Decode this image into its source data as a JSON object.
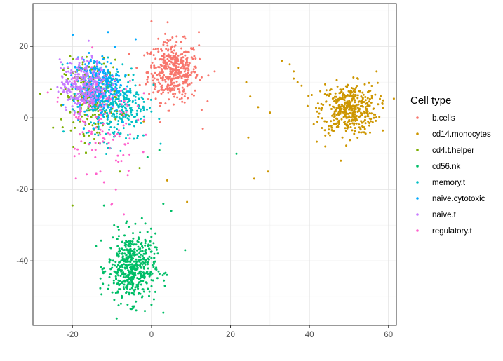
{
  "chart_data": {
    "type": "scatter",
    "title": "",
    "xlabel": "",
    "ylabel": "",
    "xlim": [
      -30,
      62
    ],
    "ylim": [
      -58,
      32
    ],
    "x_ticks": [
      -20,
      0,
      20,
      40,
      60
    ],
    "y_ticks": [
      -40,
      -20,
      0,
      20
    ],
    "x_tick_labels": [
      "-20",
      "0",
      "20",
      "40",
      "60"
    ],
    "y_tick_labels": [
      "-40",
      "-20",
      "0",
      "20"
    ],
    "grid": true,
    "legend_position": "right",
    "legend_title": "Cell type",
    "series": [
      {
        "name": "b.cells",
        "color": "#F8766D"
      },
      {
        "name": "cd14.monocytes",
        "color": "#CD9600"
      },
      {
        "name": "cd4.t.helper",
        "color": "#7CAE00"
      },
      {
        "name": "cd56.nk",
        "color": "#00BE67"
      },
      {
        "name": "memory.t",
        "color": "#00BFC4"
      },
      {
        "name": "naive.cytotoxic",
        "color": "#00A9FF"
      },
      {
        "name": "naive.t",
        "color": "#C77CFF"
      },
      {
        "name": "regulatory.t",
        "color": "#FF61CC"
      }
    ],
    "clusters": [
      {
        "series": "b.cells",
        "center": [
          5.5,
          13
        ],
        "spread": [
          3.2,
          4.2
        ],
        "n": 420
      },
      {
        "series": "cd14.monocytes",
        "center": [
          50,
          2.5
        ],
        "spread": [
          3.6,
          3.6
        ],
        "n": 430
      },
      {
        "series": "cd4.t.helper",
        "center": [
          -15,
          6
        ],
        "spread": [
          3.5,
          5
        ],
        "n": 260
      },
      {
        "series": "cd56.nk",
        "center": [
          -5,
          -42
        ],
        "spread": [
          3,
          4.8
        ],
        "n": 500
      },
      {
        "series": "memory.t",
        "center": [
          -9,
          4
        ],
        "spread": [
          4,
          5.2
        ],
        "n": 330
      },
      {
        "series": "naive.cytotoxic",
        "center": [
          -14,
          9
        ],
        "spread": [
          3,
          4
        ],
        "n": 280
      },
      {
        "series": "naive.t",
        "center": [
          -17,
          9
        ],
        "spread": [
          3,
          3.5
        ],
        "n": 300
      },
      {
        "series": "regulatory.t",
        "center": [
          -13,
          0
        ],
        "spread": [
          4.5,
          8
        ],
        "n": 120
      }
    ],
    "outliers": [
      {
        "series": "cd14.monocytes",
        "points": [
          [
            22,
            14
          ],
          [
            24,
            10
          ],
          [
            25,
            6
          ],
          [
            27,
            3
          ],
          [
            30,
            1.5
          ],
          [
            24.5,
            -5.5
          ],
          [
            26,
            -17
          ],
          [
            29.5,
            -15
          ],
          [
            33,
            16
          ],
          [
            35,
            15
          ],
          [
            36,
            13
          ],
          [
            37,
            10
          ],
          [
            38,
            9
          ],
          [
            36,
            11
          ],
          [
            4,
            -17.5
          ],
          [
            9,
            -23.5
          ],
          [
            -2,
            -1
          ],
          [
            44,
            -8
          ],
          [
            57,
            13
          ]
        ]
      },
      {
        "series": "b.cells",
        "points": [
          [
            13,
            -3
          ],
          [
            -1,
            18
          ],
          [
            0,
            27
          ],
          [
            16,
            13
          ],
          [
            12,
            24
          ]
        ]
      },
      {
        "series": "cd56.nk",
        "points": [
          [
            21.5,
            -10
          ],
          [
            2,
            -9
          ],
          [
            -1,
            -11
          ],
          [
            3,
            -24
          ],
          [
            5,
            -26
          ],
          [
            8.5,
            -37
          ],
          [
            3,
            -54.5
          ],
          [
            -12,
            -24.5
          ]
        ]
      },
      {
        "series": "cd4.t.helper",
        "points": [
          [
            -20,
            -24.5
          ],
          [
            -8,
            -15
          ],
          [
            -3,
            -14
          ]
        ]
      },
      {
        "series": "naive.cytotoxic",
        "points": [
          [
            -4,
            22
          ],
          [
            -11,
            24
          ]
        ]
      },
      {
        "series": "regulatory.t",
        "points": [
          [
            -10,
            -24
          ],
          [
            -7,
            -27
          ],
          [
            -15,
            -9
          ],
          [
            -12,
            -18
          ],
          [
            -6,
            -16
          ],
          [
            -9,
            -20
          ]
        ]
      }
    ]
  }
}
